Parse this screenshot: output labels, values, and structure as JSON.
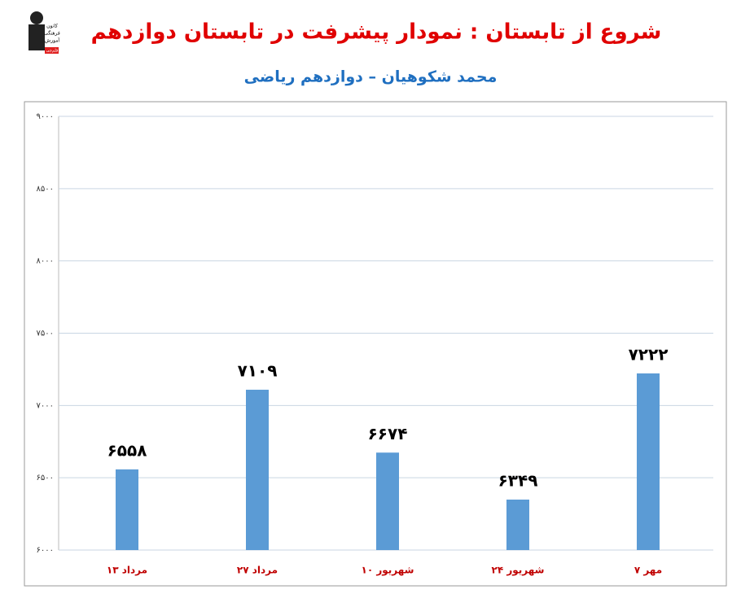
{
  "logo_text": [
    "کانون",
    "فرهنگی",
    "آموزش",
    "قلم‌چی"
  ],
  "chart_data": {
    "type": "bar",
    "title": "شروع از تابستان : نمودار پیشرفت در تابستان دوازدهم",
    "subtitle": "محمد شکوهیان – دوازدهم ریاضی",
    "categories": [
      "۱۳ مرداد",
      "۲۷ مرداد",
      "۱۰ شهریور",
      "۲۴ شهریور",
      "۷ مهر"
    ],
    "values": [
      6558,
      7109,
      6674,
      6349,
      7222
    ],
    "value_labels": [
      "۶۵۵۸",
      "۷۱۰۹",
      "۶۶۷۴",
      "۶۳۴۹",
      "۷۲۲۲"
    ],
    "color": "#5b9bd5",
    "ylim": [
      6000,
      9000
    ],
    "yticks": [
      {
        "value": 6000,
        "label": "۶۰۰۰"
      },
      {
        "value": 6500,
        "label": "۶۵۰۰"
      },
      {
        "value": 7000,
        "label": "۷۰۰۰"
      },
      {
        "value": 7500,
        "label": "۷۵۰۰"
      },
      {
        "value": 8000,
        "label": "۸۰۰۰"
      },
      {
        "value": 8500,
        "label": "۸۵۰۰"
      },
      {
        "value": 9000,
        "label": "۹۰۰۰"
      }
    ],
    "grid": true
  }
}
